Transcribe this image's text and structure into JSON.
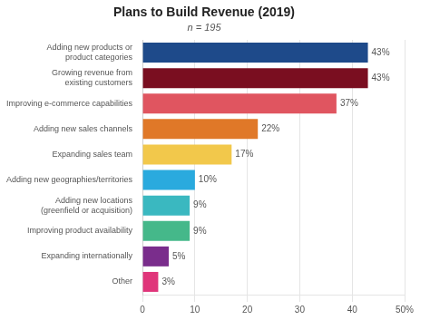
{
  "chart_data": {
    "type": "bar",
    "orientation": "horizontal",
    "title": "Plans to Build Revenue (2019)",
    "subtitle": "n = 195",
    "categories": [
      "Adding new products or\nproduct categories",
      "Growing revenue from\nexisting customers",
      "Improving e-commerce capabilities",
      "Adding new sales channels",
      "Expanding sales team",
      "Adding new geographies/territories",
      "Adding new locations\n(greenfield or acquisition)",
      "Improving product availability",
      "Expanding internationally",
      "Other"
    ],
    "values": [
      43,
      43,
      37,
      22,
      17,
      10,
      9,
      9,
      5,
      3
    ],
    "value_labels": [
      "43%",
      "43%",
      "37%",
      "22%",
      "17%",
      "10%",
      "9%",
      "9%",
      "5%",
      "3%"
    ],
    "data_labels": true,
    "colors": [
      "#1e4a8a",
      "#7a0e20",
      "#e05560",
      "#e07828",
      "#f2c84b",
      "#2aaade",
      "#3ab8c0",
      "#45b88a",
      "#7a2d8c",
      "#e0357a"
    ],
    "xlim": [
      0,
      50
    ],
    "xticks": [
      0,
      10,
      20,
      30,
      40,
      {
        "value": 50,
        "label": "50%"
      }
    ],
    "grid": true
  }
}
